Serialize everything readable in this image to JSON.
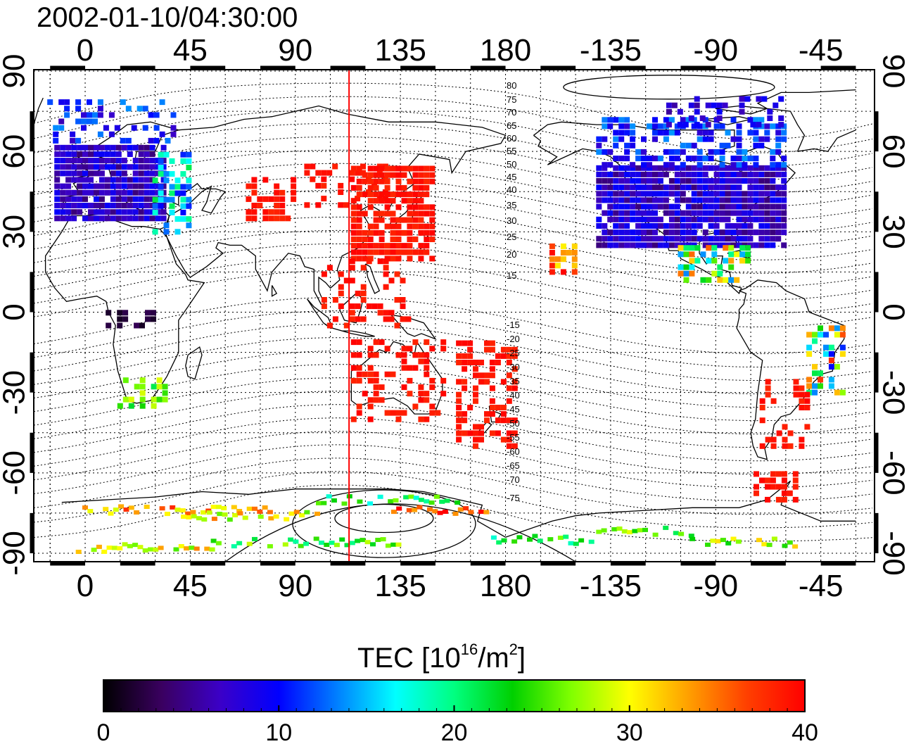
{
  "title": "2002-01-10/04:30:00",
  "colorbar": {
    "label_main": "TEC  [10",
    "label_sup": "16",
    "label_mid": "/m",
    "label_sup2": "2",
    "label_end": "]",
    "tick_labels": [
      "0",
      "10",
      "20",
      "30",
      "40"
    ],
    "colors": [
      "#000000",
      "#3a0060",
      "#3b00c8",
      "#0000ff",
      "#0080ff",
      "#00ffff",
      "#00ff80",
      "#00d000",
      "#80ff00",
      "#ffff00",
      "#ffa000",
      "#ff4000",
      "#ff0000"
    ]
  },
  "map": {
    "top_lon_labels": [
      "0",
      "45",
      "90",
      "135",
      "180",
      "-135",
      "-90",
      "-45"
    ],
    "bottom_lon_labels": [
      "0",
      "45",
      "90",
      "135",
      "180",
      "-135",
      "-90",
      "-45"
    ],
    "left_lat_labels": [
      "90",
      "60",
      "30",
      "0",
      "-30",
      "-60",
      "-90"
    ],
    "right_lat_labels": [
      "90",
      "60",
      "30",
      "0",
      "-30",
      "-60",
      "-90"
    ],
    "north_contour_labels": [
      "80",
      "75",
      "70",
      "65",
      "60",
      "55",
      "50",
      "45",
      "40",
      "35",
      "30",
      "25",
      "20",
      "15"
    ],
    "south_contour_labels": [
      "-15",
      "-20",
      "-25",
      "-30",
      "-35",
      "-40",
      "-45",
      "-50",
      "-55",
      "-60",
      "-65",
      "-70",
      "-75"
    ],
    "marker_line_color": "#ff0000",
    "marker_lon": 113
  }
}
